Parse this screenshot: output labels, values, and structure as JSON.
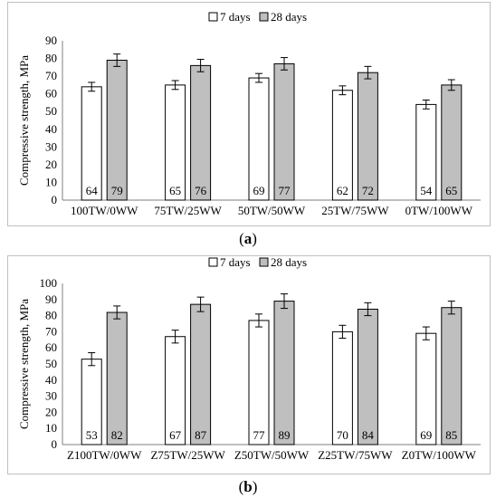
{
  "chart_data": [
    {
      "type": "bar",
      "panel": "a",
      "caption": "a",
      "ylabel": "Compressive strength, MPa",
      "ylim": [
        0,
        90
      ],
      "yticks": [
        0,
        10,
        20,
        30,
        40,
        50,
        60,
        70,
        80,
        90
      ],
      "grid": false,
      "legend": "top",
      "categories": [
        "100TW/0WW",
        "75TW/25WW",
        "50TW/50WW",
        "25TW/75WW",
        "0TW/100WW"
      ],
      "series": [
        {
          "name": "7 days",
          "color": "#ffffff",
          "values": [
            64,
            65,
            69,
            62,
            54
          ],
          "labels": [
            "64",
            "65",
            "69",
            "62",
            "54"
          ],
          "error": [
            2.5,
            2.5,
            2.5,
            2.5,
            2.5
          ]
        },
        {
          "name": "28 days",
          "color": "#bfbfbf",
          "values": [
            79,
            76,
            77,
            72,
            65
          ],
          "labels": [
            "79",
            "76",
            "77",
            "72",
            "65"
          ],
          "error": [
            3.5,
            3.5,
            3.5,
            3.5,
            3.0
          ]
        }
      ]
    },
    {
      "type": "bar",
      "panel": "b",
      "caption": "b",
      "ylabel": "Compressive strength, MPa",
      "ylim": [
        0,
        100
      ],
      "yticks": [
        0,
        10,
        20,
        30,
        40,
        50,
        60,
        70,
        80,
        90,
        100
      ],
      "grid": false,
      "legend": "top",
      "categories": [
        "Z100TW/0WW",
        "Z75TW/25WW",
        "Z50TW/50WW",
        "Z25TW/75WW",
        "Z0TW/100WW"
      ],
      "series": [
        {
          "name": "7 days",
          "color": "#ffffff",
          "values": [
            53,
            67,
            77,
            70,
            69
          ],
          "labels": [
            "53",
            "67",
            "77",
            "70",
            "69"
          ],
          "error": [
            4,
            4,
            4,
            4,
            4
          ]
        },
        {
          "name": "28 days",
          "color": "#bfbfbf",
          "values": [
            82,
            87,
            89,
            84,
            85
          ],
          "labels": [
            "82",
            "87",
            "89",
            "84",
            "85"
          ],
          "error": [
            4,
            4.5,
            4.5,
            4,
            4
          ]
        }
      ]
    }
  ]
}
